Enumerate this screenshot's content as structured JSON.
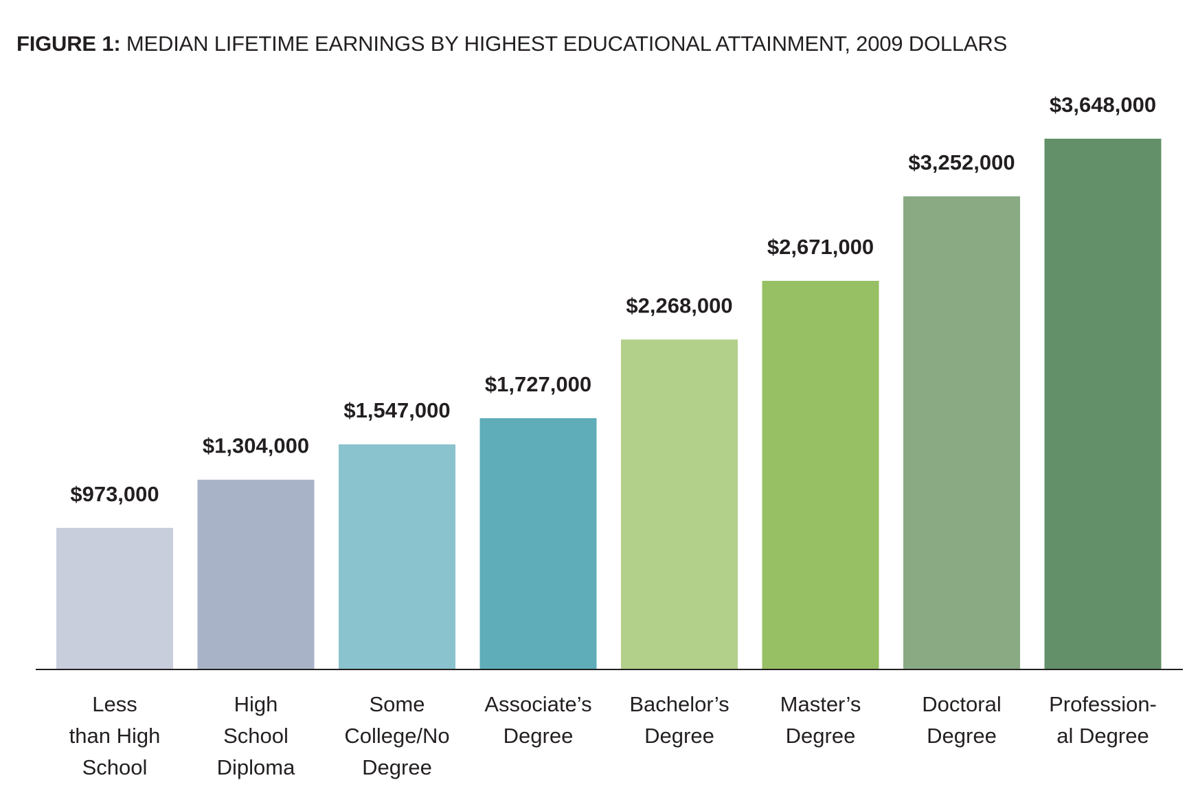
{
  "title": {
    "prefix": "FIGURE 1:",
    "text": "MEDIAN LIFETIME EARNINGS BY HIGHEST EDUCATIONAL ATTAINMENT, 2009 DOLLARS"
  },
  "chart_data": {
    "type": "bar",
    "title": "FIGURE 1: MEDIAN LIFETIME EARNINGS BY HIGHEST EDUCATIONAL ATTAINMENT, 2009 DOLLARS",
    "xlabel": "",
    "ylabel": "",
    "grid": false,
    "legend": "none",
    "ylim": [
      0,
      3648000
    ],
    "categories": [
      [
        "Less",
        "than High",
        "School"
      ],
      [
        "High",
        "School",
        "Diploma"
      ],
      [
        "Some",
        "College/No",
        "Degree"
      ],
      [
        "Associate’s",
        "Degree"
      ],
      [
        "Bachelor’s",
        "Degree"
      ],
      [
        "Master’s",
        "Degree"
      ],
      [
        "Doctoral",
        "Degree"
      ],
      [
        "Profession-",
        "al Degree"
      ]
    ],
    "values": [
      973000,
      1304000,
      1547000,
      1727000,
      2268000,
      2671000,
      3252000,
      3648000
    ],
    "value_labels": [
      "$973,000",
      "$1,304,000",
      "$1,547,000",
      "$1,727,000",
      "$2,268,000",
      "$2,671,000",
      "$3,252,000",
      "$3,648,000"
    ],
    "colors": [
      "#c8cedc",
      "#a9b3c8",
      "#8ac3cd",
      "#5eadb9",
      "#b3d08b",
      "#97bf64",
      "#8aaa84",
      "#639068"
    ],
    "axis_color": "#231f20"
  }
}
